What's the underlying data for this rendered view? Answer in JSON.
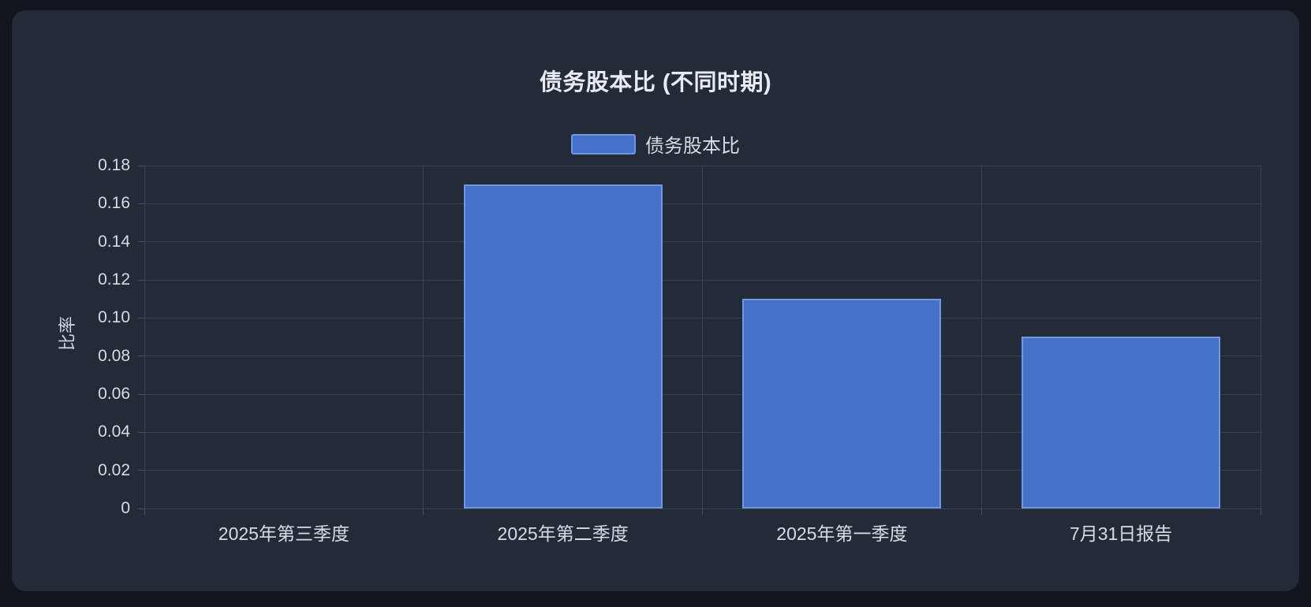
{
  "chart_data": {
    "type": "bar",
    "title": "债务股本比 (不同时期)",
    "categories": [
      "2025年第三季度",
      "2025年第二季度",
      "2025年第一季度",
      "7月31日报告"
    ],
    "series": [
      {
        "name": "债务股本比",
        "values": [
          0,
          0.17,
          0.11,
          0.09
        ]
      }
    ],
    "xlabel": "",
    "ylabel": "比率",
    "ylim": [
      0,
      0.18
    ],
    "ytick_step": 0.02,
    "ytick_labels": [
      "0",
      "0.02",
      "0.04",
      "0.06",
      "0.08",
      "0.10",
      "0.12",
      "0.14",
      "0.16",
      "0.18"
    ],
    "grid": true,
    "legend_position": "top",
    "colors": {
      "bar_fill": "#4671c9",
      "bar_border": "#6f97e6",
      "panel_background": "#232a38",
      "page_background": "#12151e",
      "gridline": "#3a4150",
      "title_text": "#e8ebf1",
      "label_text": "#d7dce5"
    }
  }
}
